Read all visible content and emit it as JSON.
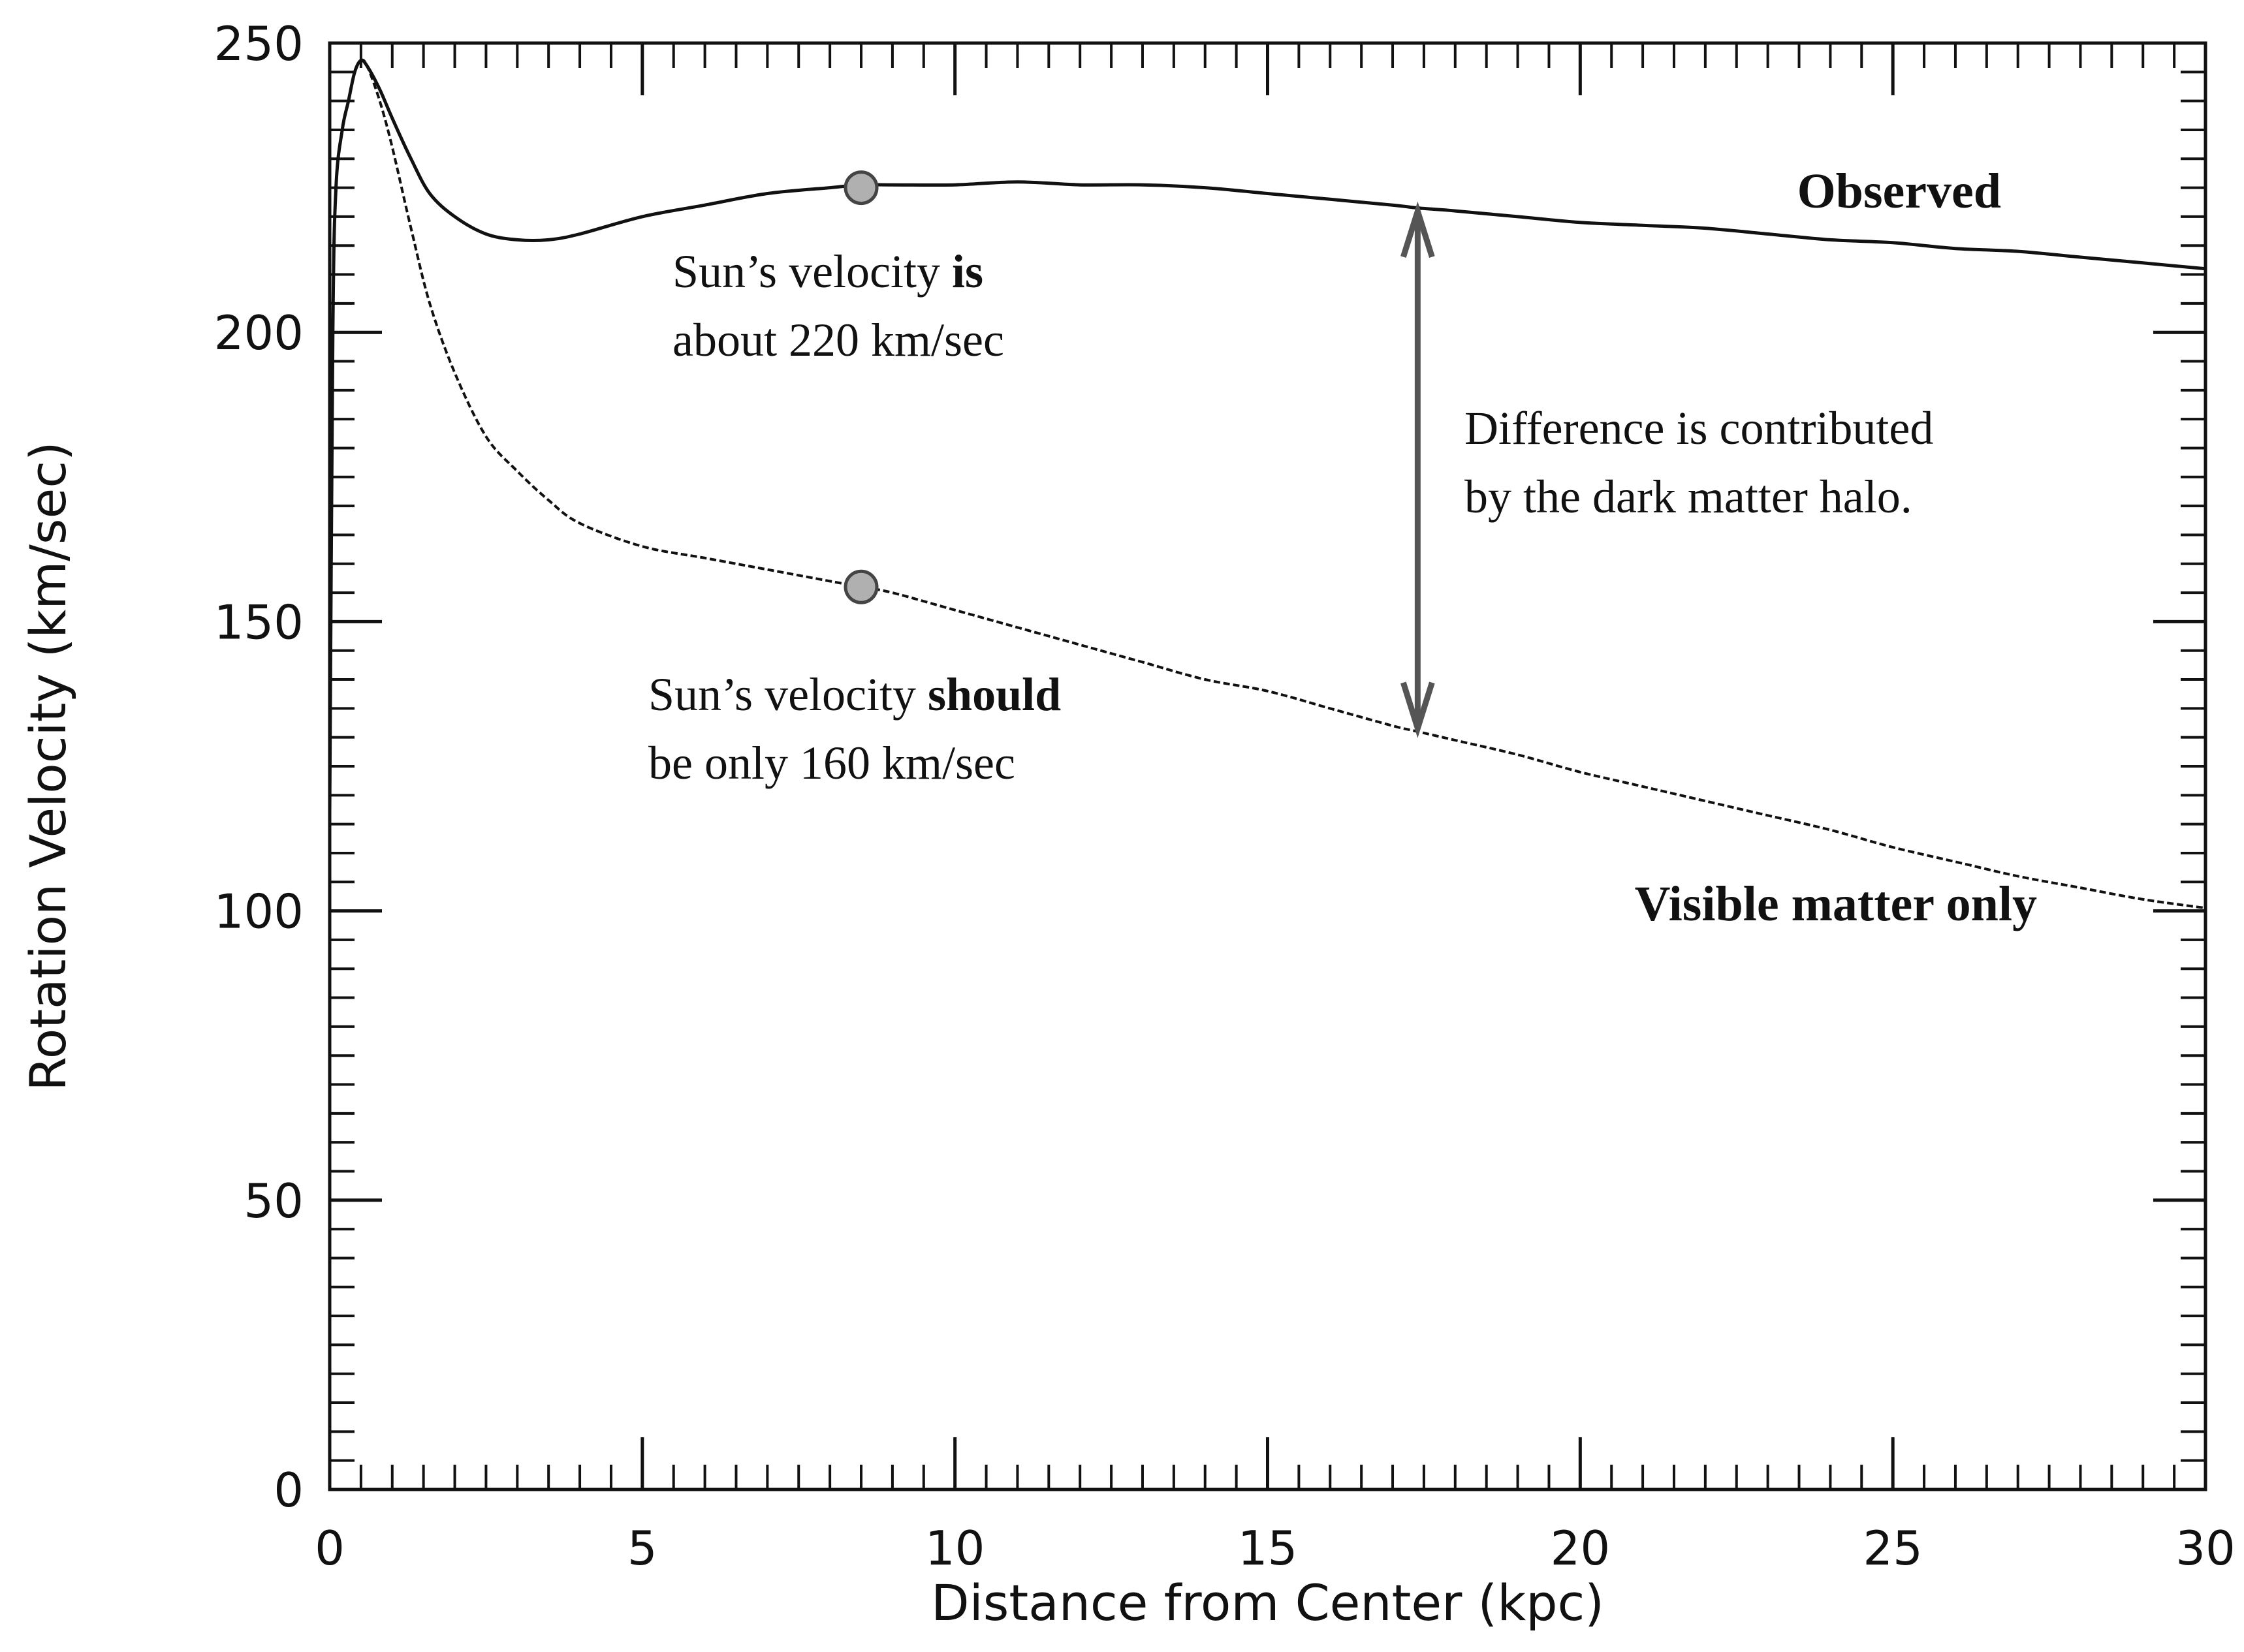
{
  "chart_data": {
    "type": "line",
    "title": "",
    "xlabel": "Distance from Center (kpc)",
    "ylabel": "Rotation Velocity (km/sec)",
    "xlim": [
      0,
      30
    ],
    "ylim": [
      0,
      250
    ],
    "x_ticks": [
      0,
      5,
      10,
      15,
      20,
      25,
      30
    ],
    "y_ticks": [
      0,
      50,
      100,
      150,
      200,
      250
    ],
    "x_tick_labels": [
      "0",
      "5",
      "10",
      "15",
      "20",
      "25",
      "30"
    ],
    "y_tick_labels": [
      "0",
      "50",
      "100",
      "150",
      "200",
      "250"
    ],
    "x_minor_step": 0.5,
    "y_minor_step": 5,
    "grid": false,
    "series": [
      {
        "name": "Observed",
        "style": "solid",
        "x": [
          0,
          0.05,
          0.1,
          0.2,
          0.3,
          0.4,
          0.5,
          0.6,
          0.8,
          1.0,
          1.3,
          1.6,
          2.0,
          2.5,
          3.0,
          3.5,
          4.0,
          5.0,
          6.0,
          7.0,
          8.0,
          8.5,
          9.0,
          10.0,
          11.0,
          12.0,
          13.0,
          14.0,
          15.0,
          16.0,
          17.0,
          17.4,
          18.0,
          19.0,
          20.0,
          21.0,
          22.0,
          23.0,
          24.0,
          25.0,
          26.0,
          27.0,
          28.0,
          29.0,
          30.0
        ],
        "y": [
          117,
          200,
          225,
          235,
          240,
          245,
          247,
          246,
          242,
          237,
          230,
          224,
          220,
          217,
          216,
          216,
          217,
          220,
          222,
          224,
          225,
          225.5,
          225.5,
          225.5,
          226,
          225.5,
          225.5,
          225,
          224,
          223,
          222,
          221.5,
          221,
          220,
          219,
          218.5,
          218,
          217,
          216,
          215.5,
          214.5,
          214,
          213,
          212,
          211
        ]
      },
      {
        "name": "Visible matter only",
        "style": "dashed",
        "x": [
          0,
          0.05,
          0.1,
          0.2,
          0.3,
          0.4,
          0.5,
          0.6,
          0.8,
          1.0,
          1.3,
          1.6,
          2.0,
          2.5,
          3.0,
          3.5,
          4.0,
          5.0,
          6.0,
          7.0,
          8.0,
          8.5,
          9.0,
          10.0,
          11.0,
          12.0,
          13.0,
          14.0,
          15.0,
          16.0,
          17.0,
          17.4,
          18.0,
          19.0,
          20.0,
          21.0,
          22.0,
          23.0,
          24.0,
          25.0,
          26.0,
          27.0,
          28.0,
          29.0,
          30.0
        ],
        "y": [
          117,
          200,
          225,
          235,
          240,
          245,
          247,
          246,
          240,
          232,
          218,
          205,
          193,
          182,
          176,
          171,
          167,
          163,
          161,
          159,
          157,
          156,
          155,
          152,
          149,
          146,
          143,
          140,
          138,
          135,
          132,
          131,
          129.5,
          127,
          124,
          121.5,
          119,
          116.5,
          114,
          111,
          108.5,
          106,
          104,
          102,
          100.5
        ]
      }
    ],
    "sun_points": [
      {
        "x": 8.5,
        "y": 225
      },
      {
        "x": 8.5,
        "y": 156
      }
    ],
    "difference_arrow": {
      "x": 17.4,
      "y_top": 221.5,
      "y_bottom": 131
    },
    "annotations": {
      "observed_label": "Observed",
      "visible_label": "Visible matter only",
      "sun_observed_line1_pre": "Sun’s velocity ",
      "sun_observed_line1_bold": "is",
      "sun_observed_line2": "about 220 km/sec",
      "sun_visible_line1_pre": "Sun’s velocity ",
      "sun_visible_line1_bold": "should",
      "sun_visible_line2": "be only 160 km/sec",
      "difference_line1": "Difference is contributed",
      "difference_line2": "by the dark matter halo."
    },
    "colors": {
      "line": "#111111",
      "arrow": "#555555",
      "sun_point_fill": "#b0b0b0"
    }
  }
}
